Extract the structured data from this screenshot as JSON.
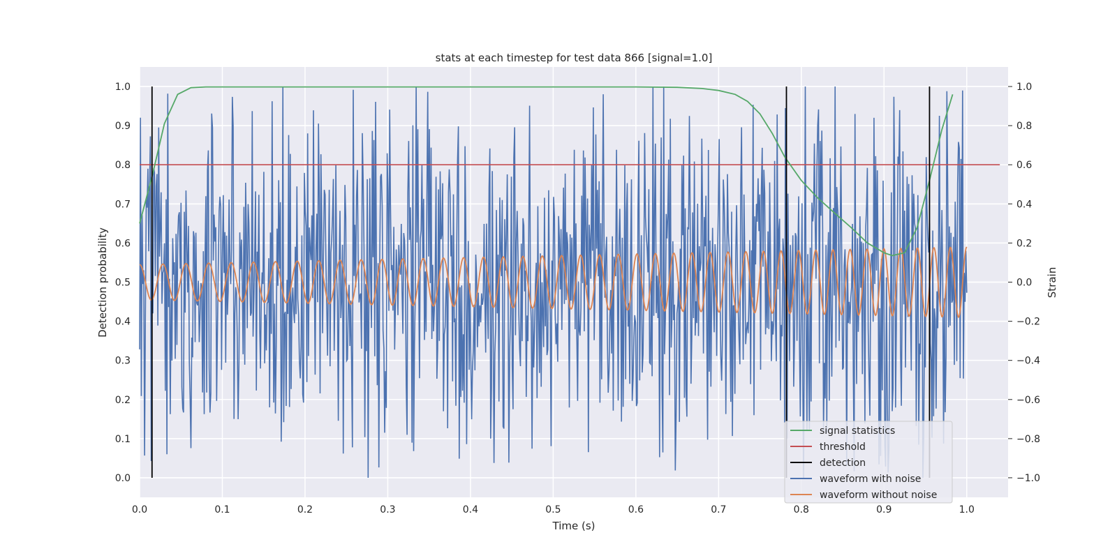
{
  "chart_data": {
    "type": "line",
    "title": "stats at each timestep for test data 866 [signal=1.0]",
    "xlabel": "Time (s)",
    "ylabel_left": "Detection probability",
    "ylabel_right": "Strain",
    "xlim": [
      0.0,
      1.05
    ],
    "ylim_left": [
      -0.05,
      1.05
    ],
    "ylim_right": [
      -1.1,
      1.1
    ],
    "xticks": [
      "0.0",
      "0.1",
      "0.2",
      "0.3",
      "0.4",
      "0.5",
      "0.6",
      "0.7",
      "0.8",
      "0.9",
      "1.0"
    ],
    "yticks_left": [
      "0.0",
      "0.1",
      "0.2",
      "0.3",
      "0.4",
      "0.5",
      "0.6",
      "0.7",
      "0.8",
      "0.9",
      "1.0"
    ],
    "yticks_right": [
      "−1.0",
      "−0.8",
      "−0.6",
      "−0.4",
      "−0.2",
      "0.0",
      "0.2",
      "0.4",
      "0.6",
      "0.8",
      "1.0"
    ],
    "grid": true,
    "legend_position": "lower-right",
    "series": [
      {
        "name": "signal statistics",
        "axis": "left",
        "color": "#55a868",
        "x": [
          0.0,
          0.015,
          0.03,
          0.046,
          0.062,
          0.08,
          0.1,
          0.2,
          0.3,
          0.4,
          0.5,
          0.6,
          0.65,
          0.68,
          0.7,
          0.72,
          0.735,
          0.75,
          0.765,
          0.78,
          0.8,
          0.82,
          0.84,
          0.86,
          0.88,
          0.9,
          0.91,
          0.925,
          0.94,
          0.955,
          0.97,
          0.983
        ],
        "y": [
          0.65,
          0.77,
          0.905,
          0.98,
          0.997,
          0.999,
          0.999,
          0.999,
          0.999,
          0.999,
          0.999,
          0.999,
          0.998,
          0.995,
          0.99,
          0.98,
          0.962,
          0.93,
          0.88,
          0.82,
          0.76,
          0.715,
          0.677,
          0.64,
          0.6,
          0.575,
          0.568,
          0.575,
          0.64,
          0.76,
          0.89,
          0.98
        ]
      },
      {
        "name": "threshold",
        "axis": "left",
        "color": "#c44e52",
        "x": [
          0.0,
          1.04
        ],
        "y": [
          0.8,
          0.8
        ]
      },
      {
        "name": "detection",
        "axis": "left",
        "color": "#000000",
        "x_positions": [
          0.015,
          0.782,
          0.955
        ],
        "y_range": [
          0.0,
          1.0
        ]
      },
      {
        "name": "waveform with noise",
        "axis": "right",
        "color": "#4c72b0",
        "x_range": [
          0.0,
          1.0
        ],
        "n_points": 1000,
        "amplitude_range": [
          -1.0,
          1.0
        ],
        "notes": "noisy strain; dense random fluctuations"
      },
      {
        "name": "waveform without noise",
        "axis": "right",
        "color": "#dd8452",
        "x_range": [
          0.0,
          1.0
        ],
        "start_amplitude": 0.09,
        "end_amplitude": 0.18,
        "cycles": 43
      }
    ]
  }
}
